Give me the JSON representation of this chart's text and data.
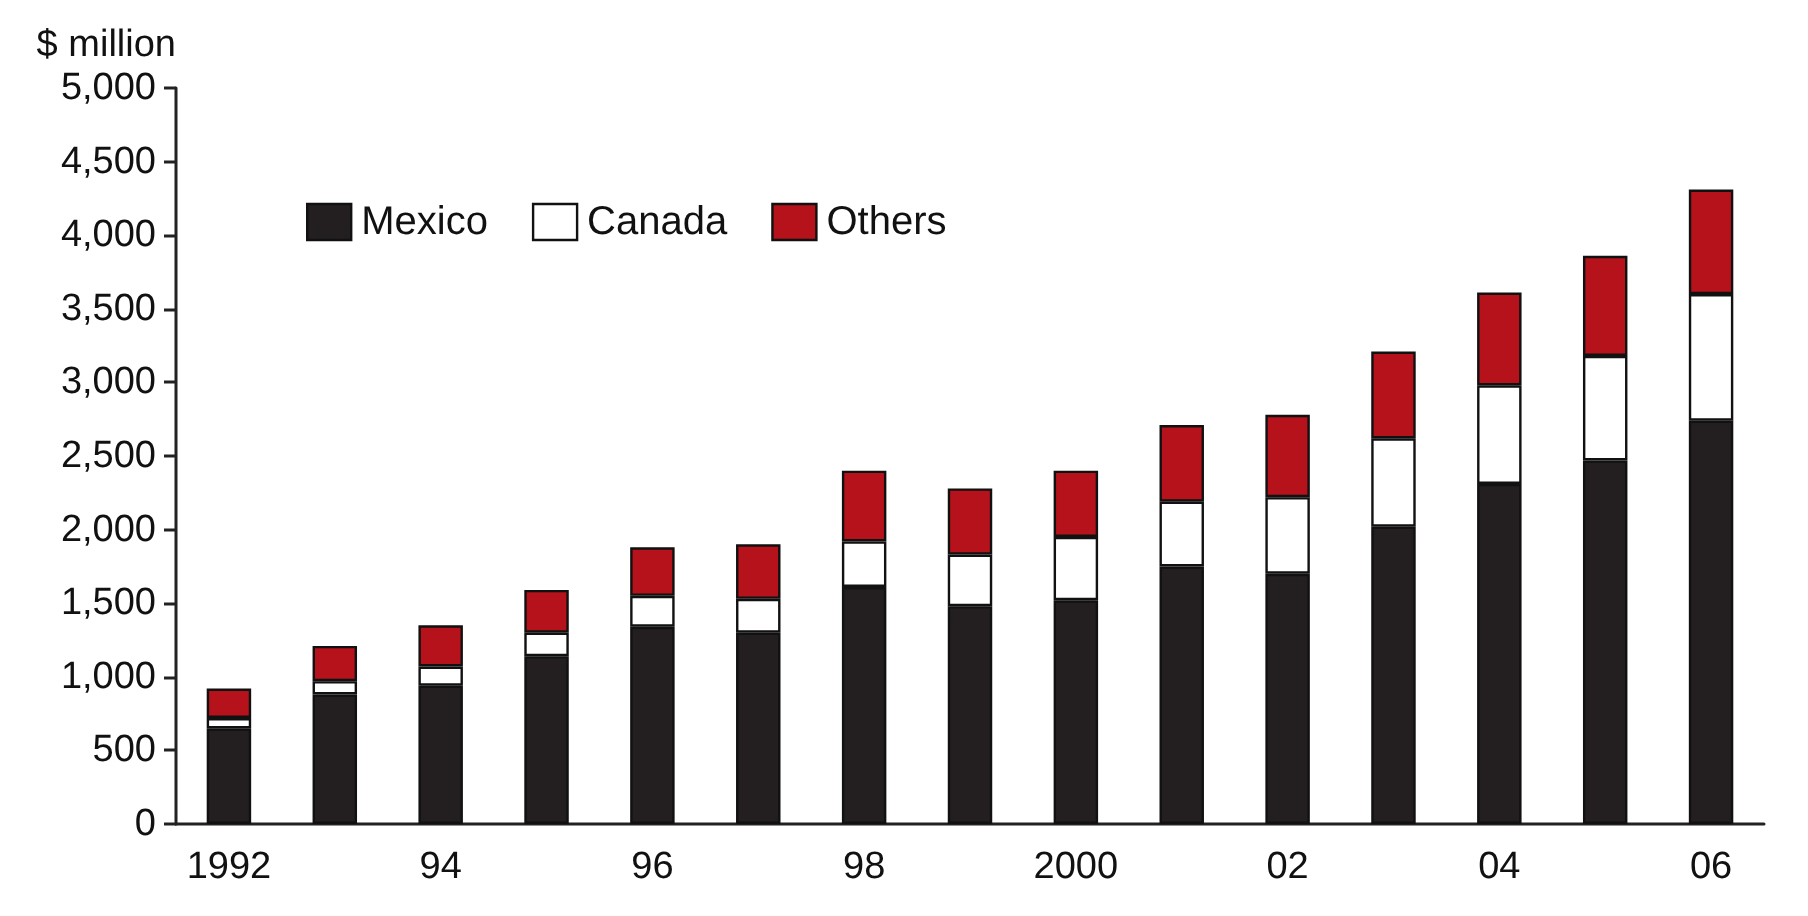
{
  "chart_data": {
    "type": "bar",
    "stacked": true,
    "ylabel": "$ million",
    "categories": [
      "1992",
      null,
      "94",
      null,
      "96",
      null,
      "98",
      null,
      "2000",
      null,
      "02",
      null,
      "04",
      null,
      "06"
    ],
    "series": [
      {
        "name": "Mexico",
        "color": "#231f20",
        "values": [
          650,
          880,
          940,
          1140,
          1340,
          1300,
          1610,
          1480,
          1520,
          1750,
          1700,
          2020,
          2310,
          2470,
          2740
        ]
      },
      {
        "name": "Canada",
        "color": "#ffffff",
        "values": [
          70,
          90,
          130,
          160,
          210,
          230,
          310,
          350,
          430,
          440,
          520,
          600,
          670,
          710,
          860
        ]
      },
      {
        "name": "Others",
        "color": "#b5121b",
        "values": [
          200,
          240,
          280,
          290,
          330,
          370,
          480,
          450,
          450,
          520,
          560,
          590,
          630,
          680,
          710
        ]
      }
    ],
    "ylim": [
      0,
      5000
    ],
    "yticks": [
      0,
      500,
      {
        "value": 1000,
        "label": "1,000"
      },
      {
        "value": 1500,
        "label": "1,500"
      },
      {
        "value": 2000,
        "label": "2,000"
      },
      {
        "value": 2500,
        "label": "2,500"
      },
      {
        "value": 3000,
        "label": "3,000"
      },
      {
        "value": 3500,
        "label": "3,500"
      },
      {
        "value": 4000,
        "label": "4,000"
      },
      {
        "value": 4500,
        "label": "4,500"
      },
      {
        "value": 5000,
        "label": "5,000"
      }
    ],
    "grid": false,
    "legend": "top left"
  }
}
